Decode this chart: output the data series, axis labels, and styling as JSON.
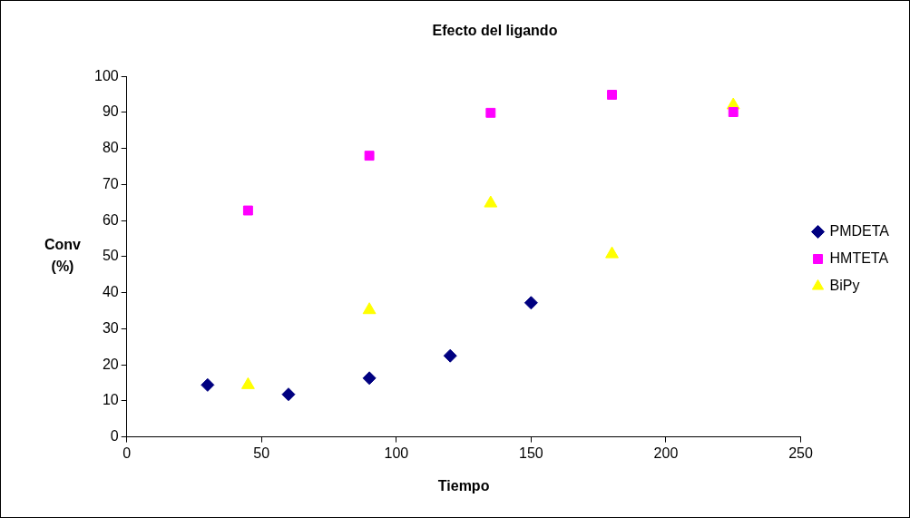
{
  "chart_data": {
    "type": "scatter",
    "title": "Efecto del ligando",
    "xlabel": "Tiempo",
    "ylabel": "Conv (%)",
    "xlim": [
      0,
      250
    ],
    "xticks": [
      0,
      50,
      100,
      150,
      200,
      250
    ],
    "ylim": [
      0,
      100
    ],
    "yticks": [
      0,
      10,
      20,
      30,
      40,
      50,
      60,
      70,
      80,
      90,
      100
    ],
    "grid": false,
    "legend": "right",
    "series": [
      {
        "name": "PMDETA",
        "color": "#000080",
        "marker": "diamond",
        "x": [
          30,
          60,
          90,
          120,
          150
        ],
        "values": [
          14.4,
          11.8,
          16.3,
          22.5,
          37.2
        ]
      },
      {
        "name": "HMTETA",
        "color": "#ff00ff",
        "marker": "square",
        "x": [
          45,
          90,
          135,
          180,
          225
        ],
        "values": [
          62.8,
          78,
          89.9,
          94.9,
          90.1
        ]
      },
      {
        "name": "BiPy",
        "color": "#ffff00",
        "marker": "triangle",
        "x": [
          45,
          90,
          135,
          180,
          225
        ],
        "values": [
          14.4,
          35.2,
          64.8,
          50.7,
          92
        ]
      }
    ]
  }
}
